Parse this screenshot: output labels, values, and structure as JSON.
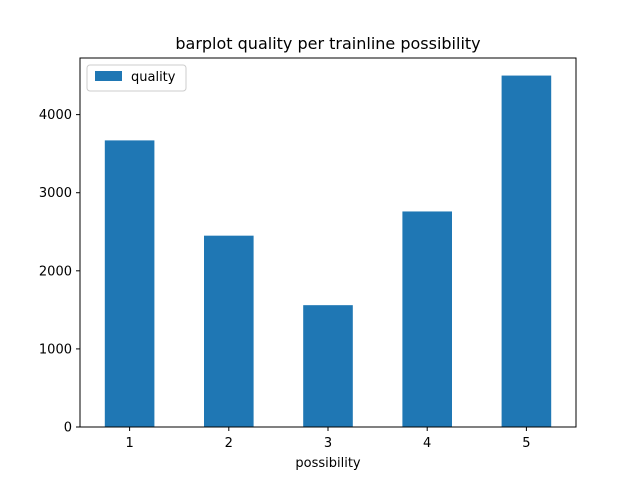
{
  "chart_data": {
    "type": "bar",
    "title": "barplot quality per trainline possibility",
    "xlabel": "possibility",
    "ylabel": "",
    "categories": [
      "1",
      "2",
      "3",
      "4",
      "5"
    ],
    "series": [
      {
        "name": "quality",
        "values": [
          3670,
          2450,
          1560,
          2760,
          4500
        ],
        "color": "#1f77b4"
      }
    ],
    "ylim": [
      0,
      4725
    ],
    "yticks": [
      0,
      1000,
      2000,
      3000,
      4000
    ],
    "grid": false,
    "legend": {
      "position": "top-left",
      "entries": [
        "quality"
      ]
    }
  }
}
